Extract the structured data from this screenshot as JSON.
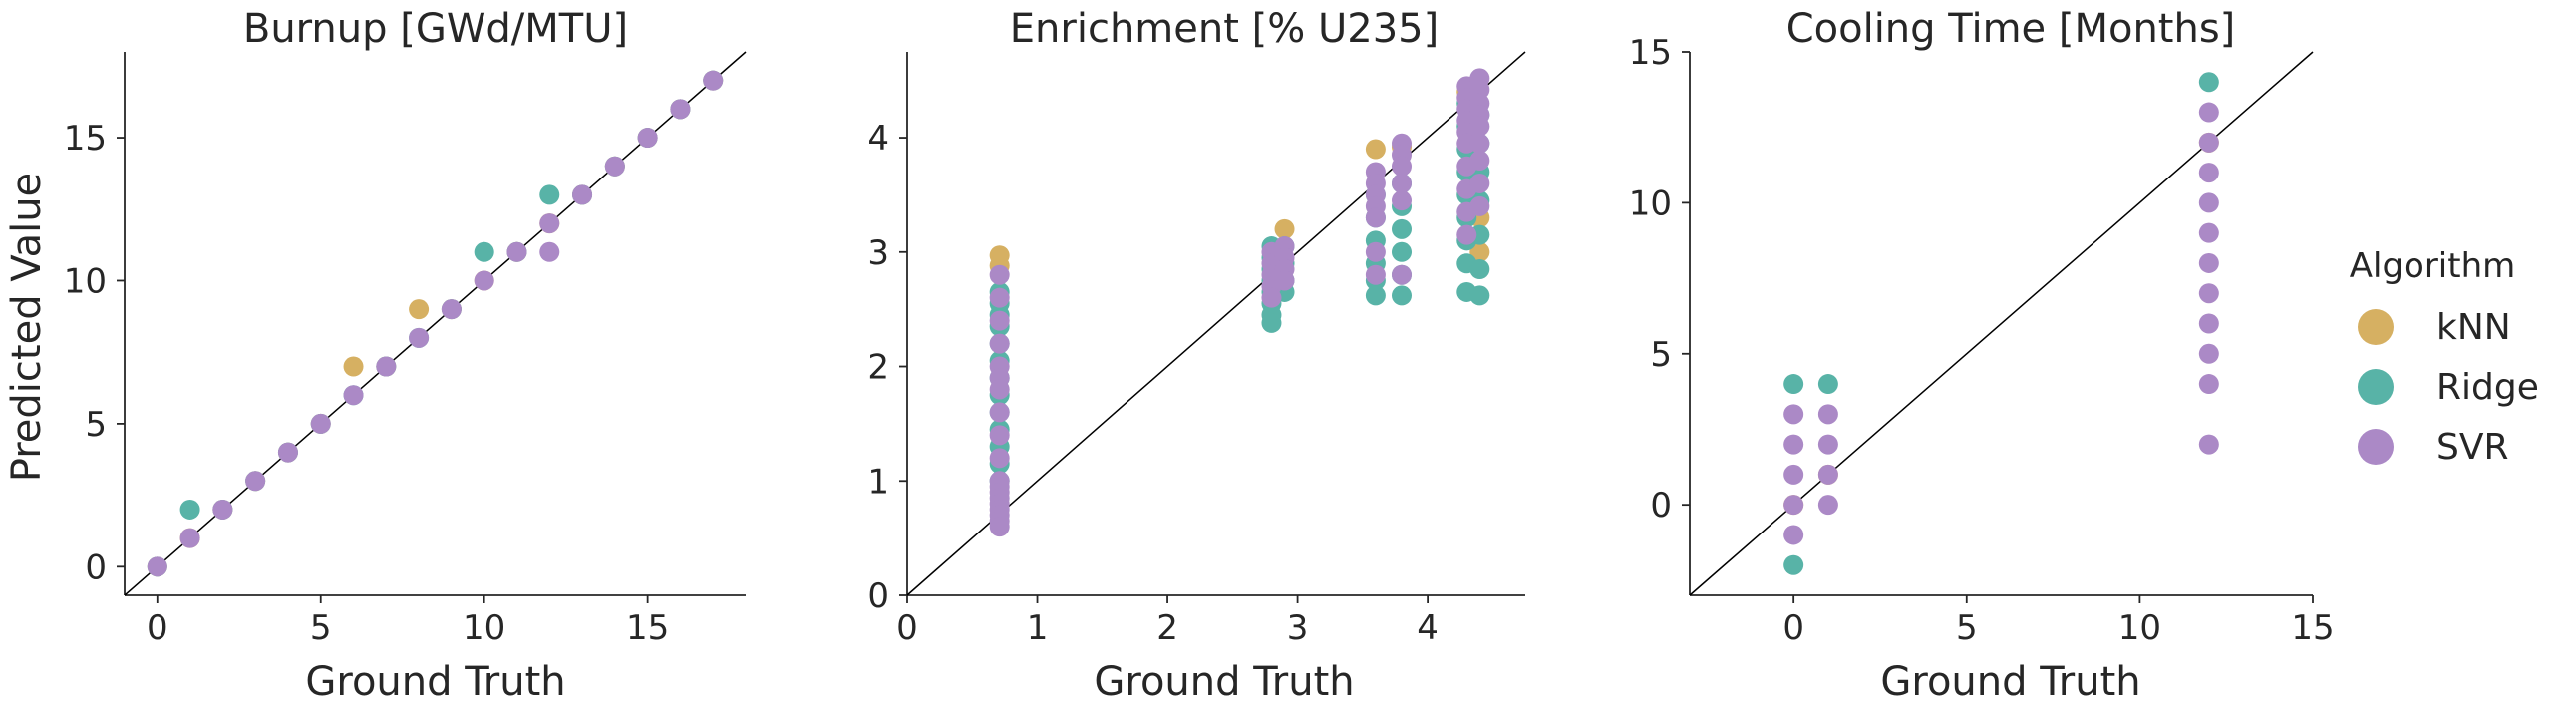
{
  "colors": {
    "kNN": "#d6b062",
    "Ridge": "#58b3a7",
    "SVR": "#ab89c6",
    "axis": "#262626",
    "diag": "#000000"
  },
  "legend": {
    "title": "Algorithm",
    "placement": "right",
    "entries": [
      {
        "label": "kNN",
        "color": "#d6b062"
      },
      {
        "label": "Ridge",
        "color": "#58b3a7"
      },
      {
        "label": "SVR",
        "color": "#ab89c6"
      }
    ]
  },
  "chart_data": [
    {
      "type": "scatter",
      "title": "Burnup [GWd/MTU]",
      "xlabel": "Ground Truth",
      "ylabel": "Predicted Value",
      "xlim": [
        -1,
        18
      ],
      "ylim": [
        -1,
        18
      ],
      "xticks": [
        "0",
        "5",
        "10",
        "15"
      ],
      "xtick_values": [
        0,
        5,
        10,
        15
      ],
      "yticks": [
        "0",
        "5",
        "10",
        "15"
      ],
      "ytick_values": [
        0,
        5,
        10,
        15
      ],
      "identity_line": true,
      "grid": false,
      "series": [
        {
          "name": "kNN",
          "points": [
            [
              0,
              0
            ],
            [
              1,
              1
            ],
            [
              2,
              2
            ],
            [
              3,
              3
            ],
            [
              4,
              4
            ],
            [
              5,
              5
            ],
            [
              6,
              7
            ],
            [
              7,
              7
            ],
            [
              8,
              9
            ],
            [
              9,
              9
            ],
            [
              10,
              10
            ],
            [
              11,
              11
            ],
            [
              12,
              12
            ],
            [
              13,
              13
            ],
            [
              14,
              14
            ],
            [
              15,
              15
            ],
            [
              16,
              16
            ],
            [
              17,
              17
            ]
          ]
        },
        {
          "name": "Ridge",
          "points": [
            [
              0,
              0
            ],
            [
              1,
              2
            ],
            [
              2,
              2
            ],
            [
              3,
              3
            ],
            [
              4,
              4
            ],
            [
              5,
              5
            ],
            [
              6,
              6
            ],
            [
              7,
              7
            ],
            [
              8,
              8
            ],
            [
              9,
              9
            ],
            [
              10,
              11
            ],
            [
              11,
              11
            ],
            [
              12,
              13
            ],
            [
              13,
              13
            ],
            [
              14,
              14
            ],
            [
              15,
              15
            ],
            [
              16,
              16
            ],
            [
              17,
              17
            ]
          ]
        },
        {
          "name": "SVR",
          "points": [
            [
              0,
              0
            ],
            [
              1,
              1
            ],
            [
              2,
              2
            ],
            [
              3,
              3
            ],
            [
              4,
              4
            ],
            [
              5,
              5
            ],
            [
              6,
              6
            ],
            [
              7,
              7
            ],
            [
              8,
              8
            ],
            [
              9,
              9
            ],
            [
              10,
              10
            ],
            [
              11,
              11
            ],
            [
              12,
              11
            ],
            [
              12,
              12
            ],
            [
              13,
              13
            ],
            [
              14,
              14
            ],
            [
              15,
              15
            ],
            [
              16,
              16
            ],
            [
              17,
              17
            ]
          ]
        }
      ]
    },
    {
      "type": "scatter",
      "title": "Enrichment [% U235]",
      "xlabel": "Ground Truth",
      "ylabel": "",
      "xlim": [
        0,
        4.75
      ],
      "ylim": [
        0,
        4.75
      ],
      "xticks": [
        "0",
        "1",
        "2",
        "3",
        "4"
      ],
      "xtick_values": [
        0,
        1,
        2,
        3,
        4
      ],
      "yticks": [
        "0",
        "1",
        "2",
        "3",
        "4"
      ],
      "ytick_values": [
        0,
        1,
        2,
        3,
        4
      ],
      "identity_line": true,
      "grid": false,
      "series": [
        {
          "name": "kNN",
          "points": [
            [
              0.71,
              2.97
            ],
            [
              0.71,
              2.88
            ],
            [
              2.9,
              3.2
            ],
            [
              3.6,
              3.9
            ],
            [
              3.8,
              3.92
            ],
            [
              4.3,
              4.4
            ],
            [
              4.4,
              3.3
            ],
            [
              4.4,
              3.0
            ]
          ]
        },
        {
          "name": "Ridge",
          "points": [
            [
              0.71,
              2.65
            ],
            [
              0.71,
              2.55
            ],
            [
              0.71,
              2.45
            ],
            [
              0.71,
              2.35
            ],
            [
              0.71,
              2.2
            ],
            [
              0.71,
              2.05
            ],
            [
              0.71,
              1.9
            ],
            [
              0.71,
              1.75
            ],
            [
              0.71,
              1.6
            ],
            [
              0.71,
              1.45
            ],
            [
              0.71,
              1.3
            ],
            [
              0.71,
              1.15
            ],
            [
              0.71,
              1.0
            ],
            [
              2.8,
              3.05
            ],
            [
              2.8,
              2.95
            ],
            [
              2.8,
              2.85
            ],
            [
              2.8,
              2.75
            ],
            [
              2.8,
              2.65
            ],
            [
              2.8,
              2.55
            ],
            [
              2.8,
              2.45
            ],
            [
              2.8,
              2.38
            ],
            [
              2.9,
              3.05
            ],
            [
              2.9,
              2.9
            ],
            [
              2.9,
              2.75
            ],
            [
              2.9,
              2.65
            ],
            [
              3.6,
              3.5
            ],
            [
              3.6,
              3.3
            ],
            [
              3.6,
              3.1
            ],
            [
              3.6,
              2.9
            ],
            [
              3.6,
              2.75
            ],
            [
              3.6,
              2.62
            ],
            [
              3.8,
              3.6
            ],
            [
              3.8,
              3.4
            ],
            [
              3.8,
              3.2
            ],
            [
              3.8,
              3.0
            ],
            [
              3.8,
              2.8
            ],
            [
              3.8,
              2.62
            ],
            [
              4.3,
              4.3
            ],
            [
              4.3,
              4.1
            ],
            [
              4.3,
              3.9
            ],
            [
              4.3,
              3.7
            ],
            [
              4.3,
              3.5
            ],
            [
              4.3,
              3.3
            ],
            [
              4.3,
              3.1
            ],
            [
              4.3,
              2.9
            ],
            [
              4.3,
              2.65
            ],
            [
              4.4,
              4.2
            ],
            [
              4.4,
              3.95
            ],
            [
              4.4,
              3.7
            ],
            [
              4.4,
              3.45
            ],
            [
              4.4,
              3.15
            ],
            [
              4.4,
              2.85
            ],
            [
              4.4,
              2.62
            ]
          ]
        },
        {
          "name": "SVR",
          "points": [
            [
              0.71,
              2.8
            ],
            [
              0.71,
              2.6
            ],
            [
              0.71,
              2.4
            ],
            [
              0.71,
              2.2
            ],
            [
              0.71,
              2.0
            ],
            [
              0.71,
              1.9
            ],
            [
              0.71,
              1.8
            ],
            [
              0.71,
              1.6
            ],
            [
              0.71,
              1.4
            ],
            [
              0.71,
              1.2
            ],
            [
              0.71,
              1.0
            ],
            [
              0.71,
              0.95
            ],
            [
              0.71,
              0.9
            ],
            [
              0.71,
              0.85
            ],
            [
              0.71,
              0.8
            ],
            [
              0.71,
              0.75
            ],
            [
              0.71,
              0.7
            ],
            [
              0.71,
              0.65
            ],
            [
              0.71,
              0.6
            ],
            [
              2.8,
              3.0
            ],
            [
              2.8,
              2.9
            ],
            [
              2.8,
              2.8
            ],
            [
              2.8,
              2.7
            ],
            [
              2.8,
              2.6
            ],
            [
              2.9,
              3.05
            ],
            [
              2.9,
              2.95
            ],
            [
              2.9,
              2.85
            ],
            [
              2.9,
              2.75
            ],
            [
              3.6,
              3.7
            ],
            [
              3.6,
              3.6
            ],
            [
              3.6,
              3.5
            ],
            [
              3.6,
              3.4
            ],
            [
              3.6,
              3.3
            ],
            [
              3.6,
              3.0
            ],
            [
              3.6,
              2.8
            ],
            [
              3.8,
              3.95
            ],
            [
              3.8,
              3.85
            ],
            [
              3.8,
              3.75
            ],
            [
              3.8,
              3.6
            ],
            [
              3.8,
              3.45
            ],
            [
              3.8,
              2.8
            ],
            [
              4.3,
              4.45
            ],
            [
              4.3,
              4.35
            ],
            [
              4.3,
              4.25
            ],
            [
              4.3,
              4.15
            ],
            [
              4.3,
              4.05
            ],
            [
              4.3,
              3.95
            ],
            [
              4.3,
              3.75
            ],
            [
              4.3,
              3.55
            ],
            [
              4.3,
              3.35
            ],
            [
              4.3,
              3.15
            ],
            [
              4.4,
              4.52
            ],
            [
              4.4,
              4.42
            ],
            [
              4.4,
              4.3
            ],
            [
              4.4,
              4.2
            ],
            [
              4.4,
              4.1
            ],
            [
              4.4,
              3.95
            ],
            [
              4.4,
              3.8
            ],
            [
              4.4,
              3.6
            ],
            [
              4.4,
              3.4
            ]
          ]
        }
      ]
    },
    {
      "type": "scatter",
      "title": "Cooling Time [Months]",
      "xlabel": "Ground Truth",
      "ylabel": "",
      "xlim": [
        -3,
        15
      ],
      "ylim": [
        -3,
        15
      ],
      "xticks": [
        "0",
        "5",
        "10",
        "15"
      ],
      "xtick_values": [
        0,
        5,
        10,
        15
      ],
      "yticks": [
        "0",
        "5",
        "10",
        "15"
      ],
      "ytick_values": [
        0,
        5,
        10,
        15
      ],
      "identity_line": true,
      "grid": false,
      "series": [
        {
          "name": "kNN",
          "points": [
            [
              0,
              0
            ],
            [
              1,
              1
            ],
            [
              12,
              12
            ]
          ]
        },
        {
          "name": "Ridge",
          "points": [
            [
              0,
              4
            ],
            [
              0,
              -2
            ],
            [
              1,
              4
            ],
            [
              12,
              14
            ]
          ]
        },
        {
          "name": "SVR",
          "points": [
            [
              0,
              3
            ],
            [
              0,
              2
            ],
            [
              0,
              1
            ],
            [
              0,
              0
            ],
            [
              0,
              -1
            ],
            [
              1,
              3
            ],
            [
              1,
              2
            ],
            [
              1,
              1
            ],
            [
              1,
              0
            ],
            [
              12,
              13
            ],
            [
              12,
              12
            ],
            [
              12,
              11
            ],
            [
              12,
              10
            ],
            [
              12,
              9
            ],
            [
              12,
              8
            ],
            [
              12,
              7
            ],
            [
              12,
              6
            ],
            [
              12,
              5
            ],
            [
              12,
              4
            ],
            [
              12,
              2
            ]
          ]
        }
      ]
    }
  ]
}
